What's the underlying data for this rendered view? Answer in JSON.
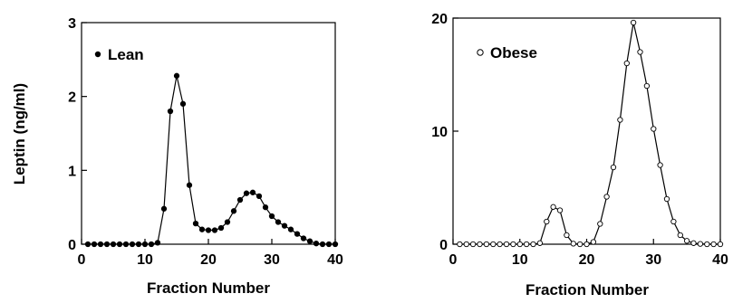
{
  "chart_data": [
    {
      "type": "line",
      "legend": "Lean",
      "marker": "filled-circle",
      "xlabel": "Fraction Number",
      "ylabel": "Leptin (ng/ml)",
      "xlim": [
        0,
        40
      ],
      "ylim": [
        0,
        3
      ],
      "xticks": [
        0,
        10,
        20,
        30,
        40
      ],
      "yticks": [
        0,
        1,
        2,
        3
      ],
      "legend_position": "top-left",
      "grid": false,
      "series": [
        {
          "name": "Lean",
          "x": [
            1,
            2,
            3,
            4,
            5,
            6,
            7,
            8,
            9,
            10,
            11,
            12,
            13,
            14,
            15,
            16,
            17,
            18,
            19,
            20,
            21,
            22,
            23,
            24,
            25,
            26,
            27,
            28,
            29,
            30,
            31,
            32,
            33,
            34,
            35,
            36,
            37,
            38,
            39,
            40
          ],
          "y": [
            0,
            0,
            0,
            0,
            0,
            0,
            0,
            0,
            0,
            0,
            0,
            0.02,
            0.48,
            1.8,
            2.28,
            1.9,
            0.8,
            0.28,
            0.2,
            0.19,
            0.19,
            0.22,
            0.3,
            0.45,
            0.6,
            0.69,
            0.7,
            0.65,
            0.5,
            0.38,
            0.3,
            0.25,
            0.2,
            0.14,
            0.08,
            0.04,
            0.01,
            0,
            0,
            0
          ]
        }
      ]
    },
    {
      "type": "line",
      "legend": "Obese",
      "marker": "open-circle",
      "xlabel": "Fraction Number",
      "ylabel": "",
      "xlim": [
        0,
        40
      ],
      "ylim": [
        0,
        20
      ],
      "xticks": [
        0,
        10,
        20,
        30,
        40
      ],
      "yticks": [
        0,
        10,
        20
      ],
      "legend_position": "top-left",
      "grid": false,
      "series": [
        {
          "name": "Obese",
          "x": [
            1,
            2,
            3,
            4,
            5,
            6,
            7,
            8,
            9,
            10,
            11,
            12,
            13,
            14,
            15,
            16,
            17,
            18,
            19,
            20,
            21,
            22,
            23,
            24,
            25,
            26,
            27,
            28,
            29,
            30,
            31,
            32,
            33,
            34,
            35,
            36,
            37,
            38,
            39,
            40
          ],
          "y": [
            0,
            0,
            0,
            0,
            0,
            0,
            0,
            0,
            0,
            0,
            0,
            0,
            0.1,
            2.0,
            3.3,
            3.0,
            0.8,
            0.05,
            0,
            0,
            0.2,
            1.8,
            4.2,
            6.8,
            11.0,
            16.0,
            19.6,
            17.0,
            14.0,
            10.2,
            7.0,
            4.0,
            2.0,
            0.8,
            0.3,
            0.1,
            0.03,
            0,
            0,
            0
          ]
        }
      ]
    }
  ]
}
